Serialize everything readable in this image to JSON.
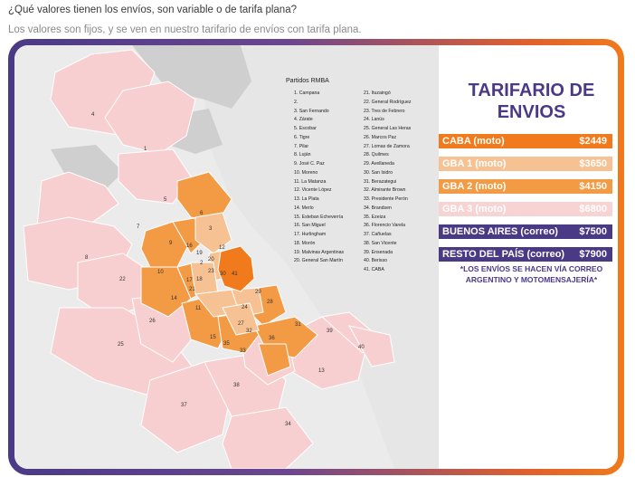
{
  "question": "¿Qué valores tienen los envíos, son variable o de tarifa plana?",
  "answer": "Los valores son fijos, y se ven en nuestro tarifario de envíos con tarifa plana.",
  "colors": {
    "caba": "#f07a1c",
    "gba1": "#f7c293",
    "gba2": "#f39a44",
    "gba3": "#f8d3d3",
    "correo": "#4a3a86",
    "brand_purple": "#4a3a86",
    "brand_orange": "#f07a1c"
  },
  "map": {
    "legend_title": "Partidos RMBA",
    "partidos_left": [
      "1. Campana",
      "2. ",
      "3. San Fernando",
      "4. Zárate",
      "5. Escobar",
      "6. Tigre",
      "7. Pilar",
      "8. Luján",
      "9. José C. Paz",
      "10. Moreno",
      "11. La Matanza",
      "12. Vicente López",
      "13. La Plata",
      "14. Merlo",
      "15. Esteban Echeverría",
      "16. San Miguel",
      "17. Hurlingham",
      "18. Morón",
      "19. Malvinas Argentinas",
      "20. General San Martín"
    ],
    "partidos_right": [
      "21. Ituzaingó",
      "22. General Rodríguez",
      "23. Tres de Febrero",
      "24. Lanús",
      "25. General Las Heras",
      "26. Marcos Paz",
      "27. Lomas de Zamora",
      "28. Quilmes",
      "29. Avellaneda",
      "30. San Isidro",
      "31. Berazategui",
      "32. Almirante Brown",
      "33. Presidente Perón",
      "34. Brandsen",
      "35. Ezeiza",
      "36. Florencio Varela",
      "37. Cañuelas",
      "38. San Vicente",
      "39. Ensenada",
      "40. Berisso",
      "41. CABA"
    ],
    "labels": [
      "1",
      "4",
      "5",
      "6",
      "7",
      "8",
      "9",
      "10",
      "11",
      "12",
      "13",
      "14",
      "15",
      "16",
      "17",
      "18",
      "19",
      "20",
      "21",
      "22",
      "23",
      "24",
      "25",
      "26",
      "27",
      "28",
      "29",
      "30",
      "31",
      "32",
      "33",
      "34",
      "35",
      "36",
      "37",
      "38",
      "39",
      "40",
      "41",
      "2",
      "3"
    ]
  },
  "tarifario": {
    "title": "TARIFARIO DE ENVIOS",
    "rates": [
      {
        "zone": "CABA (moto)",
        "price": "$2449",
        "color": "#f07a1c"
      },
      {
        "zone": "GBA 1 (moto)",
        "price": "$3650",
        "color": "#f7c293"
      },
      {
        "zone": "GBA 2 (moto)",
        "price": "$4150",
        "color": "#f39a44"
      },
      {
        "zone": "GBA 3 (moto)",
        "price": "$6800",
        "color": "#f8d3d3"
      },
      {
        "zone": "BUENOS AIRES (correo)",
        "price": "$7500",
        "color": "#4a3a86"
      },
      {
        "zone": "RESTO DEL PAÍS (correo)",
        "price": "$7900",
        "color": "#4a3a86"
      }
    ],
    "note": "*LOS ENVÍOS SE HACEN VÍA CORREO ARGENTINO Y MOTOMENSAJERÍA*"
  }
}
